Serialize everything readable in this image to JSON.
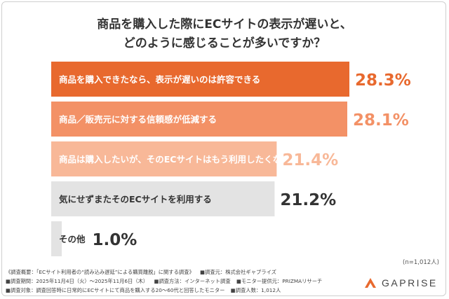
{
  "title": {
    "line1": "商品を購入した際にECサイトの表示が遅いと、",
    "line2": "どのように感じることが多いですか？"
  },
  "sample_note": "(n=1,012人)",
  "footer": {
    "survey_overview": "《調査概要：「ECサイト利用者の“読み込み遅延”による購買離脱」に関する調査》",
    "surveyor": "■調査元：株式会社ギャプライズ",
    "period": "■調査期間：2025年11月4日（火）〜2025年11月6日（木）",
    "method": "■調査方法：インターネット調査",
    "monitor": "■モニター提供元：PRIZMAリサーチ",
    "target": "■調査対象：調査回答時に日常的にECサイトにて商品を購入する20〜60代と回答したモニター",
    "respondents": "■調査人数：1,012人"
  },
  "logo": {
    "text": "GAPRISE"
  },
  "chart_data": {
    "type": "bar",
    "orientation": "horizontal",
    "categories": [
      "商品を購入できたなら、表示が遅いのは許容できる",
      "商品／販売元に対する信頼感が低減する",
      "商品は購入したいが、そのECサイトはもう利用したくない",
      "気にせずまたそのECサイトを利用する",
      "その他"
    ],
    "values": [
      28.3,
      28.1,
      21.4,
      21.2,
      1.0
    ],
    "value_labels": [
      "28.3%",
      "28.1%",
      "21.4%",
      "21.2%",
      "1.0%"
    ],
    "unit": "%",
    "xlim": [
      0,
      28.3
    ],
    "colors": [
      "#e8692e",
      "#f39166",
      "#f8b898",
      "#e3e3e3",
      "#e3e3e3"
    ],
    "label_colors": [
      "#ffffff",
      "#ffffff",
      "#ffffff",
      "#333333",
      "#333333"
    ],
    "value_colors": [
      "#e8692e",
      "#f39166",
      "#f8b898",
      "#333333",
      "#333333"
    ],
    "grid": false,
    "legend": "none"
  }
}
